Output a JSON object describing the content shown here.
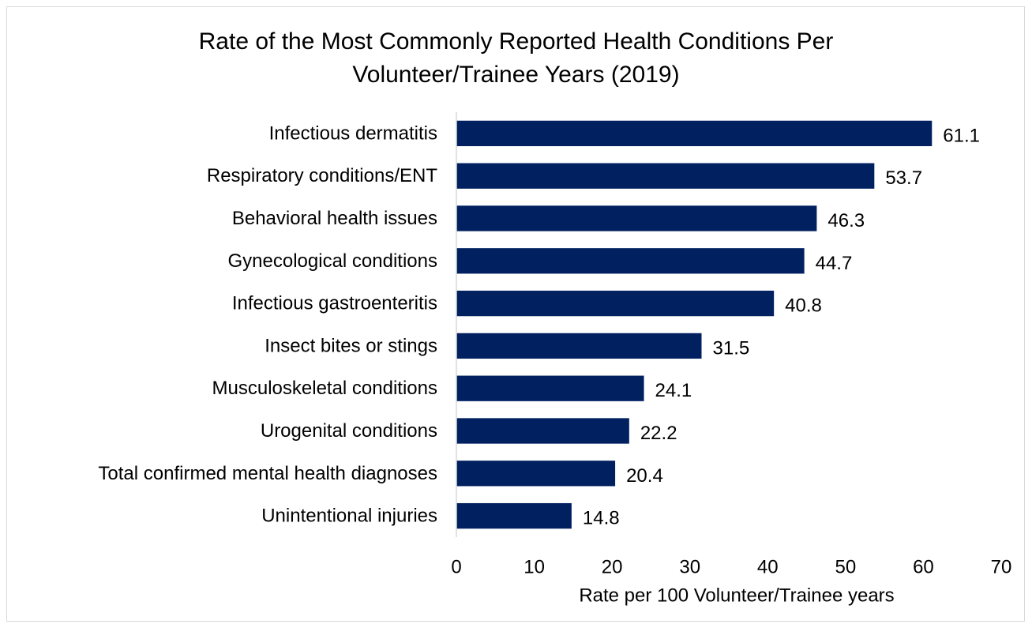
{
  "chart_data": {
    "type": "bar",
    "orientation": "horizontal",
    "title": "Rate of the Most Commonly Reported Health Conditions Per\nVolunteer/Trainee Years (2019)",
    "xlabel": "Rate per 100 Volunteer/Trainee years",
    "ylabel": "",
    "categories": [
      "Infectious dermatitis",
      "Respiratory conditions/ENT",
      "Behavioral health issues",
      "Gynecological conditions",
      "Infectious gastroenteritis",
      "Insect bites or stings",
      "Musculoskeletal conditions",
      "Urogenital conditions",
      "Total confirmed mental health diagnoses",
      "Unintentional injuries"
    ],
    "values": [
      61.1,
      53.7,
      46.3,
      44.7,
      40.8,
      31.5,
      24.1,
      22.2,
      20.4,
      14.8
    ],
    "data_labels": [
      "61.1",
      "53.7",
      "46.3",
      "44.7",
      "40.8",
      "31.5",
      "24.1",
      "22.2",
      "20.4",
      "14.8"
    ],
    "xlim": [
      0,
      70
    ],
    "xticks": [
      "0",
      "10",
      "20",
      "30",
      "40",
      "50",
      "60",
      "70"
    ],
    "grid": false,
    "legend": "none",
    "bar_color": "#002060",
    "axis_color": "#d9d9d9"
  }
}
